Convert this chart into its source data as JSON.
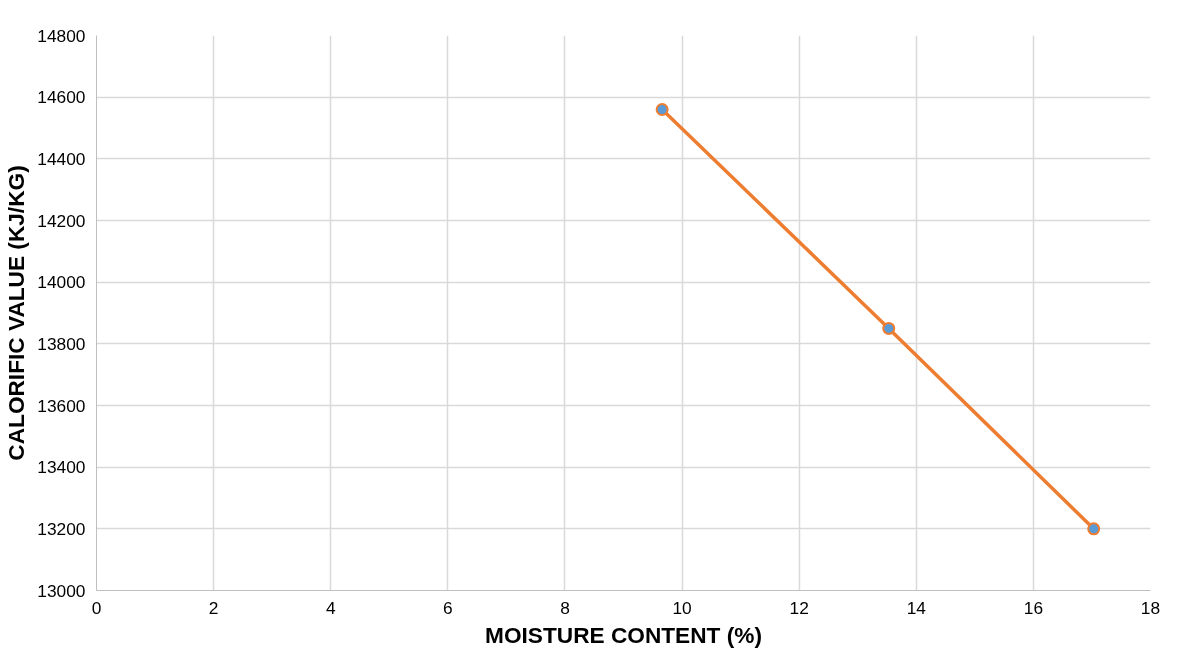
{
  "chart_data": {
    "type": "line",
    "xlabel": "MOISTURE CONTENT (%)",
    "ylabel": "CALORIFIC VALUE (KJ/KG)",
    "series": [
      {
        "color": "#ed7d31",
        "x": [
          9.66,
          13.53,
          17.03
        ],
        "values": [
          14560,
          13850,
          13200
        ]
      }
    ],
    "xlim": [
      0,
      18
    ],
    "xticks": [
      0,
      2,
      4,
      6,
      8,
      10,
      12,
      14,
      16,
      18
    ],
    "ylim": [
      13000,
      14800
    ],
    "yticks": [
      13000,
      13200,
      13400,
      13600,
      13800,
      14000,
      14200,
      14400,
      14600,
      14800
    ],
    "grid": true,
    "marker": "circle",
    "line_style": "solid"
  }
}
